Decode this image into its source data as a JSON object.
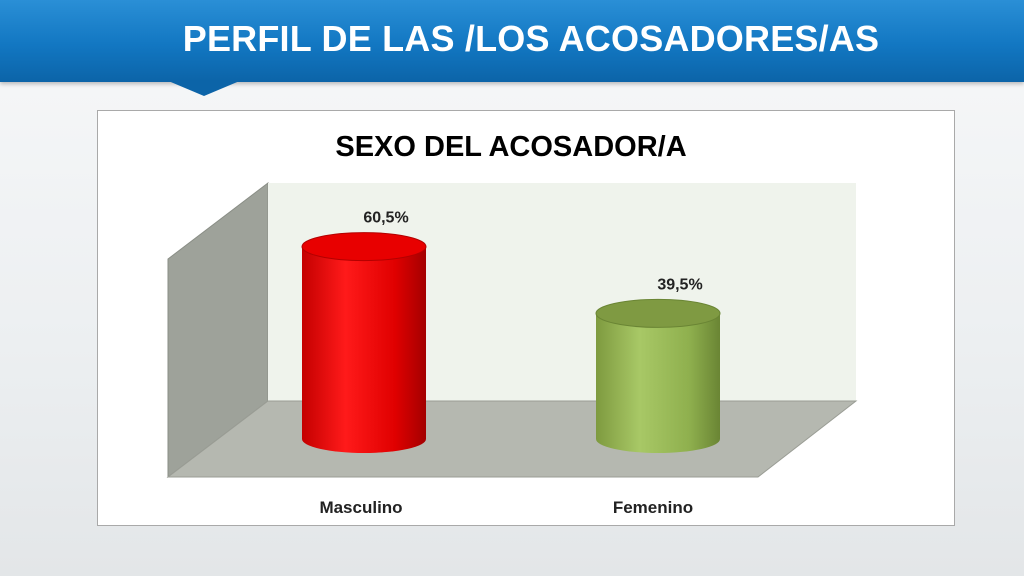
{
  "header": {
    "title": "PERFIL DE LAS /LOS ACOSADORES/AS"
  },
  "chart_data": {
    "type": "bar",
    "title": "SEXO DEL ACOSADOR/A",
    "categories": [
      "Masculino",
      "Femenino"
    ],
    "values": [
      60.5,
      39.5
    ],
    "value_labels": [
      "60,5%",
      "39,5%"
    ],
    "unit": "%",
    "ylim": [
      0,
      70
    ],
    "legend": "none",
    "colors": [
      "#ee1111",
      "#9bbb59"
    ],
    "grid": false
  }
}
